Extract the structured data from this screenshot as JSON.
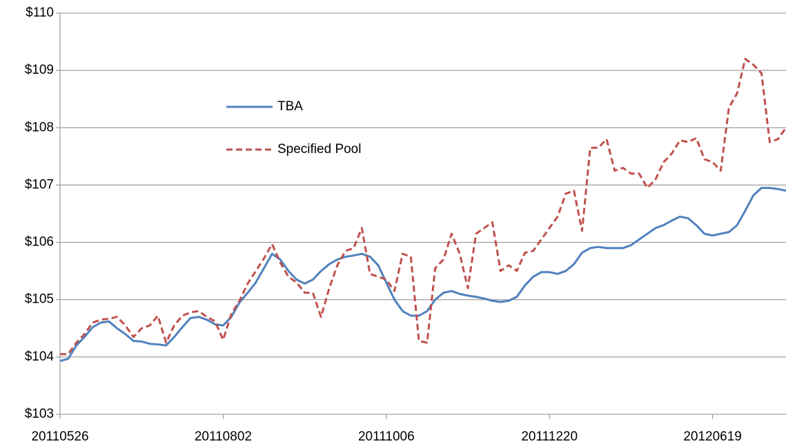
{
  "chart_data": {
    "type": "line",
    "categories": [
      "20110526",
      null,
      null,
      null,
      null,
      null,
      null,
      null,
      null,
      null,
      null,
      null,
      null,
      null,
      null,
      null,
      null,
      null,
      null,
      null,
      "20110802",
      null,
      null,
      null,
      null,
      null,
      null,
      null,
      null,
      null,
      null,
      null,
      null,
      null,
      null,
      null,
      null,
      null,
      null,
      null,
      "20111006",
      null,
      null,
      null,
      null,
      null,
      null,
      null,
      null,
      null,
      null,
      null,
      null,
      null,
      null,
      null,
      null,
      null,
      null,
      null,
      "20111220",
      null,
      null,
      null,
      null,
      null,
      null,
      null,
      null,
      null,
      null,
      null,
      null,
      null,
      null,
      null,
      null,
      null,
      null,
      null,
      "20120619",
      null,
      null,
      null,
      null,
      null,
      null,
      null,
      null,
      null
    ],
    "series": [
      {
        "name": "TBA",
        "color": "#4f81bd",
        "dash": false,
        "values": [
          103.93,
          103.97,
          104.2,
          104.35,
          104.52,
          104.6,
          104.62,
          104.5,
          104.4,
          104.28,
          104.27,
          104.23,
          104.22,
          104.2,
          104.35,
          104.52,
          104.68,
          104.7,
          104.65,
          104.57,
          104.55,
          104.7,
          104.95,
          105.12,
          105.3,
          105.55,
          105.8,
          105.7,
          105.5,
          105.35,
          105.28,
          105.35,
          105.5,
          105.62,
          105.7,
          105.75,
          105.77,
          105.8,
          105.75,
          105.6,
          105.3,
          105.0,
          104.8,
          104.72,
          104.72,
          104.8,
          105.0,
          105.12,
          105.15,
          105.1,
          105.07,
          105.05,
          105.02,
          104.98,
          104.96,
          104.98,
          105.05,
          105.25,
          105.4,
          105.48,
          105.48,
          105.45,
          105.5,
          105.62,
          105.82,
          105.9,
          105.92,
          105.9,
          105.9,
          105.9,
          105.95,
          106.05,
          106.15,
          106.25,
          106.3,
          106.38,
          106.45,
          106.42,
          106.3,
          106.15,
          106.12,
          106.15,
          106.18,
          106.3,
          106.55,
          106.82,
          106.95,
          106.95,
          106.93,
          106.9
        ]
      },
      {
        "name": "Specified Pool",
        "color": "#c0504d",
        "dash": true,
        "values": [
          104.05,
          104.05,
          104.25,
          104.4,
          104.6,
          104.65,
          104.67,
          104.7,
          104.55,
          104.35,
          104.5,
          104.55,
          104.72,
          104.25,
          104.55,
          104.72,
          104.78,
          104.8,
          104.7,
          104.62,
          104.3,
          104.75,
          104.98,
          105.28,
          105.5,
          105.72,
          105.97,
          105.65,
          105.4,
          105.3,
          105.12,
          105.12,
          104.7,
          105.2,
          105.6,
          105.85,
          105.9,
          106.25,
          105.45,
          105.4,
          105.35,
          105.15,
          105.8,
          105.75,
          104.28,
          104.25,
          105.55,
          105.7,
          106.15,
          105.8,
          105.2,
          106.15,
          106.25,
          106.35,
          105.5,
          105.6,
          105.5,
          105.82,
          105.85,
          106.05,
          106.25,
          106.45,
          106.85,
          106.9,
          106.2,
          107.65,
          107.65,
          107.8,
          107.25,
          107.3,
          107.2,
          107.2,
          106.95,
          107.1,
          107.4,
          107.55,
          107.78,
          107.75,
          107.82,
          107.45,
          107.4,
          107.25,
          108.35,
          108.6,
          109.2,
          109.1,
          108.95,
          107.75,
          107.8,
          108.0
        ]
      }
    ],
    "ylim": [
      103,
      110
    ],
    "yticks": [
      {
        "value": 103,
        "label": "$103"
      },
      {
        "value": 104,
        "label": "$104"
      },
      {
        "value": 105,
        "label": "$105"
      },
      {
        "value": 106,
        "label": "$106"
      },
      {
        "value": 107,
        "label": "$107"
      },
      {
        "value": 108,
        "label": "$108"
      },
      {
        "value": 109,
        "label": "$109"
      },
      {
        "value": 110,
        "label": "$110"
      }
    ],
    "grid": true
  }
}
